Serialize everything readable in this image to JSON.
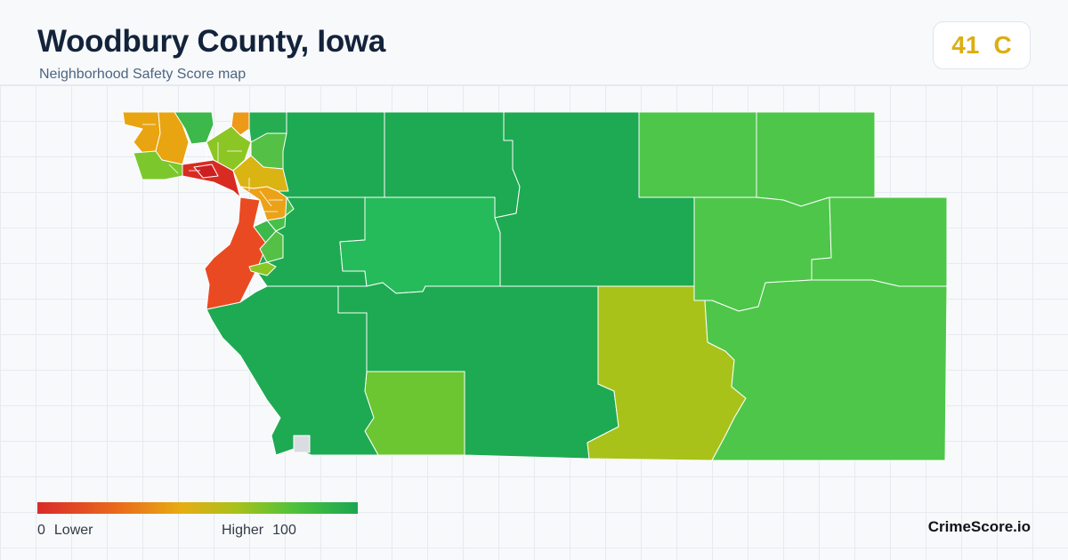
{
  "header": {
    "title": "Woodbury County, Iowa",
    "subtitle": "Neighborhood Safety Score map"
  },
  "score_badge": {
    "score": "41",
    "grade": "C",
    "color": "#dcae12"
  },
  "legend": {
    "min_value": "0",
    "min_label": "Lower",
    "max_label": "Higher",
    "max_value": "100",
    "scale_colors": [
      "#d92a2a",
      "#ea6a1c",
      "#e6ad12",
      "#a9c11a",
      "#4ec23b",
      "#1aa652"
    ]
  },
  "brand": "CrimeScore.io",
  "map": {
    "region": "Woodbury County",
    "no_data_color": "#d9dde2",
    "border_color": "#ffffff"
  }
}
